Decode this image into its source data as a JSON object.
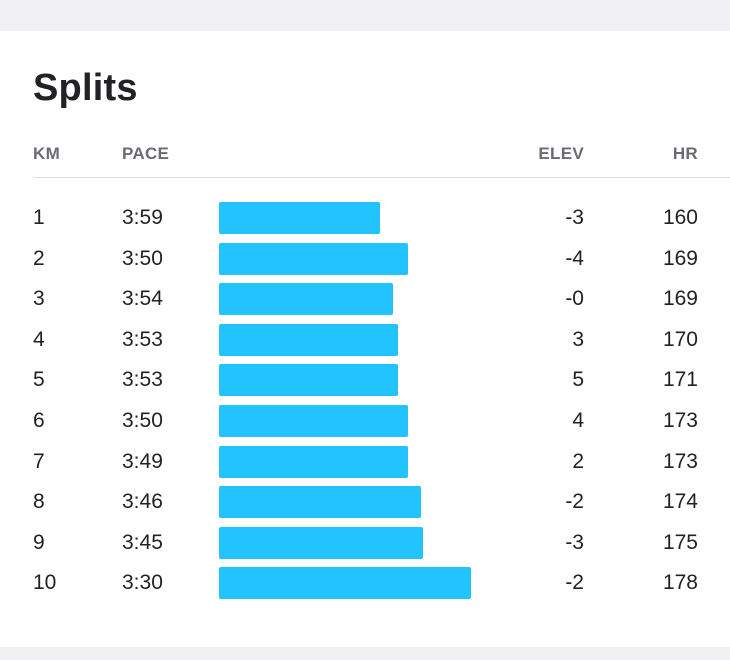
{
  "title": "Splits",
  "columns": {
    "km": "KM",
    "pace": "PACE",
    "elev": "ELEV",
    "hr": "HR"
  },
  "bar_color": "#22c3ff",
  "splits": [
    {
      "km": "1",
      "pace": "3:59",
      "elev": "-3",
      "hr": "160",
      "bar_level": 0.64
    },
    {
      "km": "2",
      "pace": "3:50",
      "elev": "-4",
      "hr": "169",
      "bar_level": 0.75
    },
    {
      "km": "3",
      "pace": "3:54",
      "elev": "-0",
      "hr": "169",
      "bar_level": 0.69
    },
    {
      "km": "4",
      "pace": "3:53",
      "elev": "3",
      "hr": "170",
      "bar_level": 0.71
    },
    {
      "km": "5",
      "pace": "3:53",
      "elev": "5",
      "hr": "171",
      "bar_level": 0.71
    },
    {
      "km": "6",
      "pace": "3:50",
      "elev": "4",
      "hr": "173",
      "bar_level": 0.75
    },
    {
      "km": "7",
      "pace": "3:49",
      "elev": "2",
      "hr": "173",
      "bar_level": 0.75
    },
    {
      "km": "8",
      "pace": "3:46",
      "elev": "-2",
      "hr": "174",
      "bar_level": 0.8
    },
    {
      "km": "9",
      "pace": "3:45",
      "elev": "-3",
      "hr": "175",
      "bar_level": 0.81
    },
    {
      "km": "10",
      "pace": "3:30",
      "elev": "-2",
      "hr": "178",
      "bar_level": 1.0
    }
  ]
}
